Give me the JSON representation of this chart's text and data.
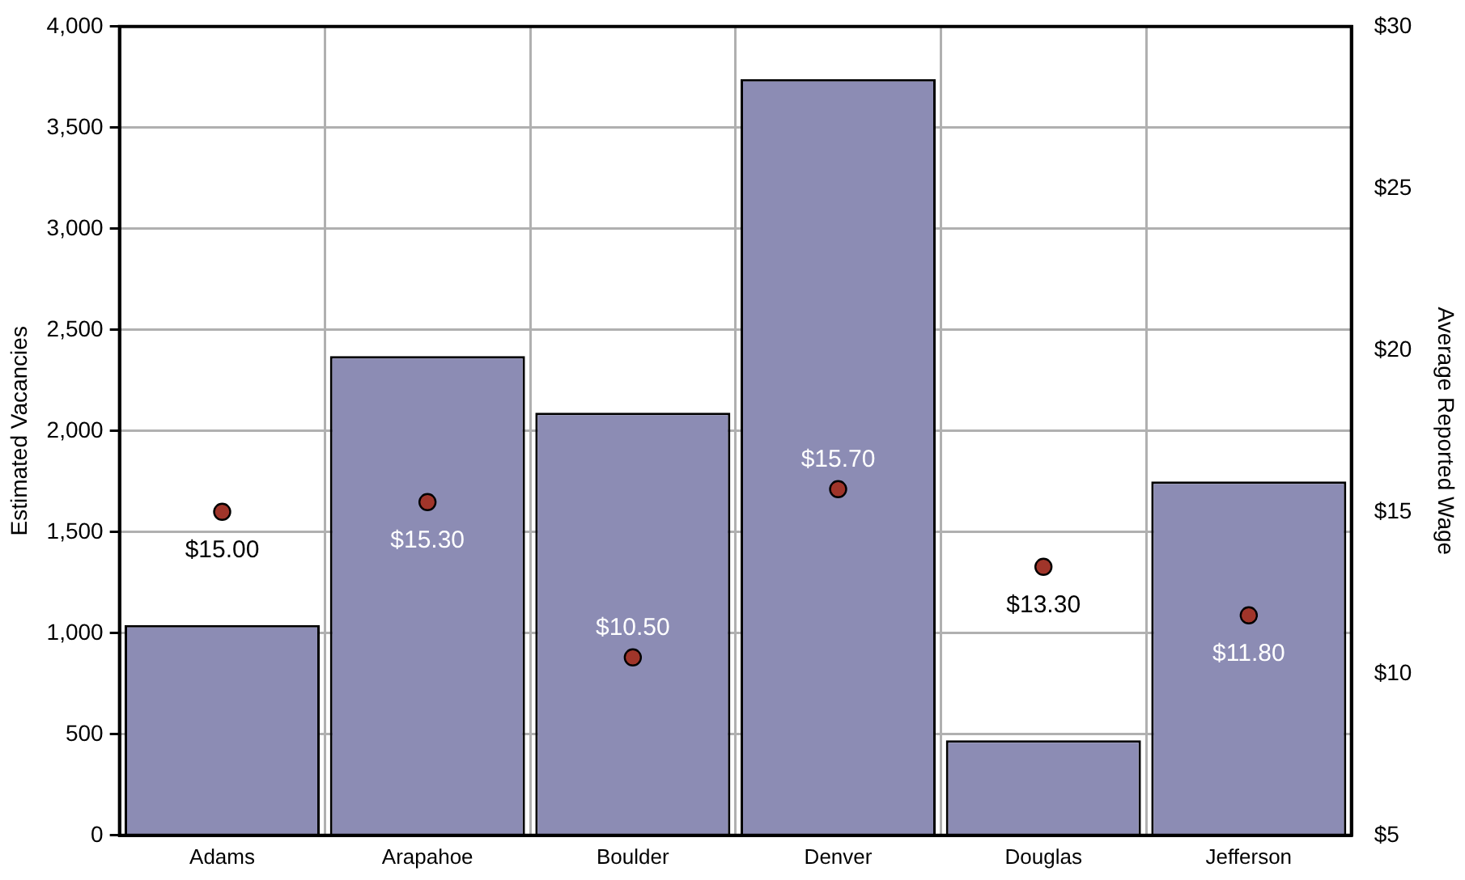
{
  "chart_data": {
    "type": "bar",
    "categories": [
      "Adams",
      "Arapahoe",
      "Boulder",
      "Denver",
      "Douglas",
      "Jefferson"
    ],
    "series": [
      {
        "color": "#8c8cb4",
        "values": [
          1040,
          2370,
          2090,
          3740,
          470,
          1750
        ]
      },
      {
        "type": "scatter",
        "axis": "y2",
        "color": "#a0352a",
        "values": [
          15.0,
          15.3,
          10.5,
          15.7,
          13.3,
          11.8
        ],
        "value_labels": [
          "$15.00",
          "$15.30",
          "$10.50",
          "$15.70",
          "$13.30",
          "$11.80"
        ]
      }
    ],
    "ylabel": "Estimated Vacancies",
    "y2label": "Average Reported Wage",
    "ylim": [
      0,
      4000
    ],
    "yticks": [
      0,
      {
        "value": 500,
        "label": "500"
      },
      {
        "value": 1000,
        "label": "1,000"
      },
      {
        "value": 1500,
        "label": "1,500"
      },
      {
        "value": 2000,
        "label": "2,000"
      },
      {
        "value": 2500,
        "label": "2,500"
      },
      {
        "value": 3000,
        "label": "3,000"
      },
      {
        "value": 3500,
        "label": "3,500"
      },
      {
        "value": 4000,
        "label": "4,000"
      }
    ],
    "y2lim": [
      5,
      30
    ],
    "y2ticks": [
      {
        "value": 5,
        "label": "$5"
      },
      {
        "value": 10,
        "label": "$10"
      },
      {
        "value": 15,
        "label": "$15"
      },
      {
        "value": 20,
        "label": "$20"
      },
      {
        "value": 25,
        "label": "$25"
      },
      {
        "value": 30,
        "label": "$30"
      }
    ],
    "grid": true,
    "marker": "circle"
  }
}
